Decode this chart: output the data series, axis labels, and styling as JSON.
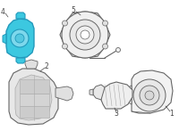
{
  "background_color": "#ffffff",
  "highlight_color": "#3cc8e0",
  "line_color": "#aaaaaa",
  "dark_line_color": "#666666",
  "label_color": "#444444",
  "figsize": [
    2.0,
    1.47
  ],
  "dpi": 100
}
